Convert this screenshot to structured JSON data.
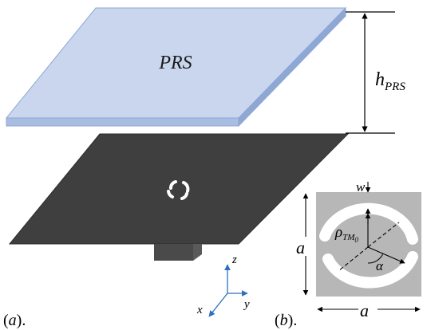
{
  "labels": {
    "prs": "PRS",
    "h_prs_base": "h",
    "h_prs_sub": "PRS",
    "w": "w",
    "a_vertical": "a",
    "a_horizontal": "a",
    "rho_base": "ρ",
    "rho_sub": "TM",
    "rho_sub2": "0",
    "alpha": "α",
    "axis_z": "z",
    "axis_x": "x",
    "axis_y": "y",
    "panel_a": "(a).",
    "panel_a_letter": "a",
    "panel_b": "(b).",
    "panel_b_letter": "b"
  },
  "colors": {
    "prs_top": "#c9d6ee",
    "prs_side": "#a9bde3",
    "prs_edge": "#8ea7d4",
    "ground_plane": "#3f3f3f",
    "ground_edge": "#2c2c2c",
    "feed_block": "#4a4a4a",
    "unit_cell_bg": "#b7b7b7",
    "slot_fill": "#ffffff",
    "axis_blue": "#2f6fbf",
    "dim_lines": "#000000"
  }
}
